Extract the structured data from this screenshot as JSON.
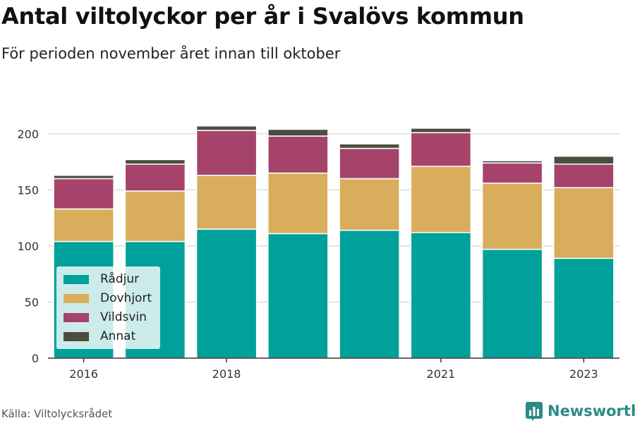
{
  "header": {
    "title": "Antal viltolyckor per år i Svalövs kommun",
    "subtitle": "För perioden november året innan till oktober"
  },
  "footer": {
    "source": "Källa: Viltolycksrådet",
    "brand": "Newsworthy"
  },
  "chart_data": {
    "type": "bar",
    "stacked": true,
    "categories": [
      "2016",
      "2017",
      "2018",
      "2019",
      "2020",
      "2021",
      "2022",
      "2023"
    ],
    "x_tick_labels": [
      "2016",
      "",
      "2018",
      "",
      "",
      "2021",
      "",
      "2023"
    ],
    "series": [
      {
        "name": "Rådjur",
        "color": "#00a19a",
        "values": [
          104,
          104,
          115,
          111,
          114,
          112,
          97,
          89
        ]
      },
      {
        "name": "Dovhjort",
        "color": "#d9ad5c",
        "values": [
          29,
          45,
          48,
          54,
          46,
          59,
          59,
          63
        ]
      },
      {
        "name": "Vildsvin",
        "color": "#a5436b",
        "values": [
          27,
          24,
          40,
          33,
          27,
          30,
          18,
          21
        ]
      },
      {
        "name": "Annat",
        "color": "#4b4e3f",
        "values": [
          3,
          4,
          4,
          6,
          4,
          4,
          2,
          7
        ]
      }
    ],
    "ylim": [
      0,
      225
    ],
    "yticks": [
      0,
      50,
      100,
      150,
      200
    ],
    "grid": true,
    "legend_position": "bottom-left"
  }
}
